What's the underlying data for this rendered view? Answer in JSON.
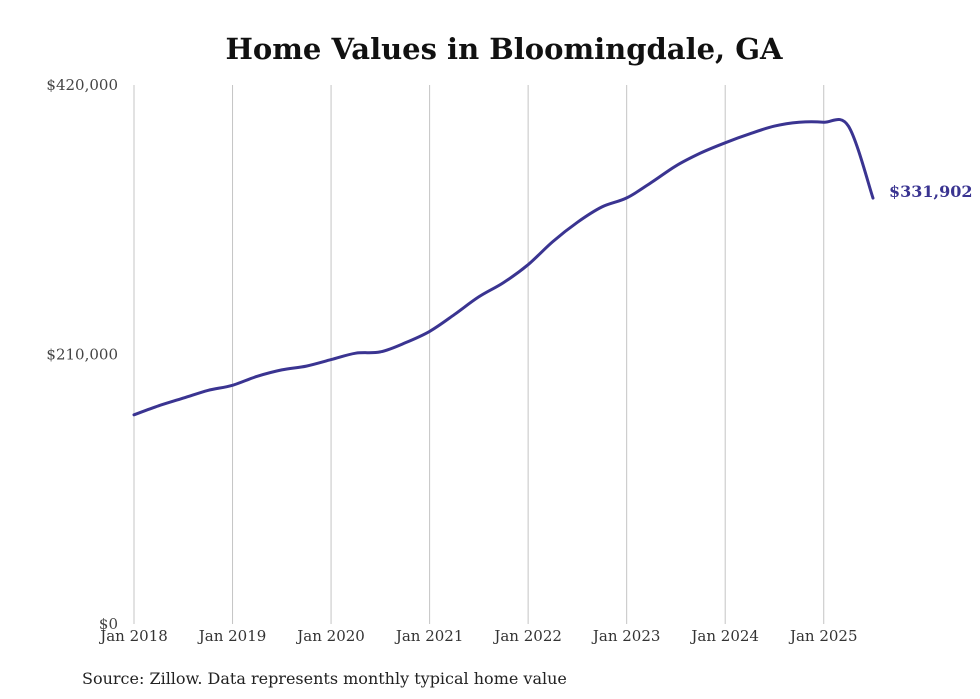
{
  "chart_data": {
    "type": "line",
    "title": "Home Values in Bloomingdale, GA",
    "source": "Source: Zillow. Data represents monthly typical home value",
    "ylim": [
      0,
      420000
    ],
    "y_tick_labels": [
      "$0",
      "$210,000",
      "$420,000"
    ],
    "y_tick_values": [
      0,
      210000,
      420000
    ],
    "x_tick_labels": [
      "Jan 2018",
      "Jan 2019",
      "Jan 2020",
      "Jan 2021",
      "Jan 2022",
      "Jan 2023",
      "Jan 2024",
      "Jan 2025"
    ],
    "x_tick_values": [
      "2018-01",
      "2019-01",
      "2020-01",
      "2021-01",
      "2022-01",
      "2023-01",
      "2024-01",
      "2025-01"
    ],
    "x_range": [
      "2018-01",
      "2025-07"
    ],
    "grid": "vertical lines at x ticks",
    "line_color": "#3a3491",
    "end_label": "$331,902",
    "series": [
      {
        "x": [
          "2018-01",
          "2018-04",
          "2018-07",
          "2018-10",
          "2019-01",
          "2019-04",
          "2019-07",
          "2019-10",
          "2020-01",
          "2020-04",
          "2020-07",
          "2020-10",
          "2021-01",
          "2021-04",
          "2021-07",
          "2021-10",
          "2022-01",
          "2022-04",
          "2022-07",
          "2022-10",
          "2023-01",
          "2023-04",
          "2023-07",
          "2023-10",
          "2024-01",
          "2024-04",
          "2024-07",
          "2024-10",
          "2025-01",
          "2025-04",
          "2025-07"
        ],
        "values": [
          163000,
          170000,
          176000,
          182000,
          186000,
          193000,
          198000,
          201000,
          206000,
          211000,
          212000,
          219000,
          228000,
          241000,
          255000,
          266000,
          280000,
          298000,
          313000,
          325000,
          332000,
          344000,
          357000,
          367000,
          375000,
          382000,
          388000,
          391000,
          391000,
          388000,
          331902
        ]
      }
    ]
  }
}
